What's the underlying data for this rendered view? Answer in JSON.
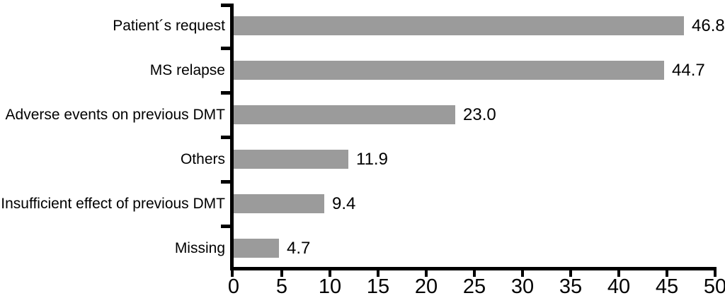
{
  "figure": {
    "background": "#ffffff"
  },
  "chart_data": {
    "type": "bar",
    "orientation": "horizontal",
    "title": "",
    "xlabel": "",
    "ylabel": "",
    "categories": [
      "Patient´s request",
      "MS relapse",
      "Adverse events on previous DMT",
      "Others",
      "Insufficient effect of previous DMT",
      "Missing"
    ],
    "values": [
      46.8,
      44.7,
      23.0,
      11.9,
      9.4,
      4.7
    ],
    "value_labels": [
      "46.8",
      "44.7",
      "23.0",
      "11.9",
      "9.4",
      "4.7"
    ],
    "xlim": [
      0,
      50
    ],
    "x_ticks": [
      0,
      5,
      10,
      15,
      20,
      25,
      30,
      35,
      40,
      45,
      50
    ],
    "x_tick_labels": [
      "0",
      "5",
      "10",
      "15",
      "20",
      "25",
      "30",
      "35",
      "40",
      "45",
      "50"
    ],
    "grid": false,
    "legend": null,
    "bar_color": "#9b9b9b",
    "axis_color": "#000000",
    "text_color": "#000000"
  }
}
